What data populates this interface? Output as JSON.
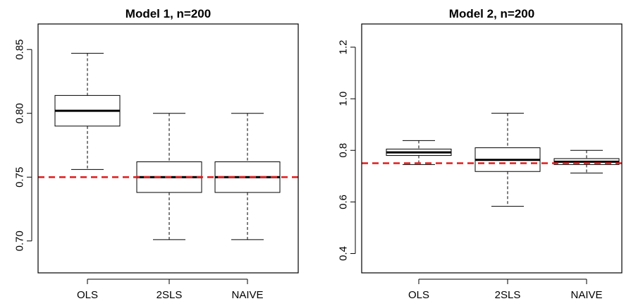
{
  "chart_data": [
    {
      "type": "boxplot",
      "title": "Model 1, n=200",
      "categories": [
        "OLS",
        "2SLS",
        "NAIVE"
      ],
      "ylim": [
        0.675,
        0.87
      ],
      "yticks": [
        0.7,
        0.75,
        0.8,
        0.85
      ],
      "ytick_labels": [
        "0.70",
        "0.75",
        "0.80",
        "0.85"
      ],
      "boxes": [
        {
          "min": 0.756,
          "q1": 0.79,
          "median": 0.802,
          "q3": 0.814,
          "max": 0.847
        },
        {
          "min": 0.701,
          "q1": 0.738,
          "median": 0.75,
          "q3": 0.762,
          "max": 0.8
        },
        {
          "min": 0.701,
          "q1": 0.738,
          "median": 0.75,
          "q3": 0.762,
          "max": 0.8
        }
      ],
      "reference_line": {
        "y": 0.75,
        "color": "#e31a1c",
        "style": "dashed"
      }
    },
    {
      "type": "boxplot",
      "title": "Model 2, n=200",
      "categories": [
        "OLS",
        "2SLS",
        "NAIVE"
      ],
      "ylim": [
        0.325,
        1.29
      ],
      "yticks": [
        0.4,
        0.6,
        0.8,
        1.0,
        1.2
      ],
      "ytick_labels": [
        "0.4",
        "0.6",
        "0.8",
        "1.0",
        "1.2"
      ],
      "boxes": [
        {
          "min": 0.745,
          "q1": 0.78,
          "median": 0.792,
          "q3": 0.805,
          "max": 0.838
        },
        {
          "min": 0.583,
          "q1": 0.718,
          "median": 0.763,
          "q3": 0.81,
          "max": 0.944
        },
        {
          "min": 0.712,
          "q1": 0.745,
          "median": 0.756,
          "q3": 0.768,
          "max": 0.8
        }
      ],
      "reference_line": {
        "y": 0.75,
        "color": "#e31a1c",
        "style": "dashed"
      }
    }
  ]
}
